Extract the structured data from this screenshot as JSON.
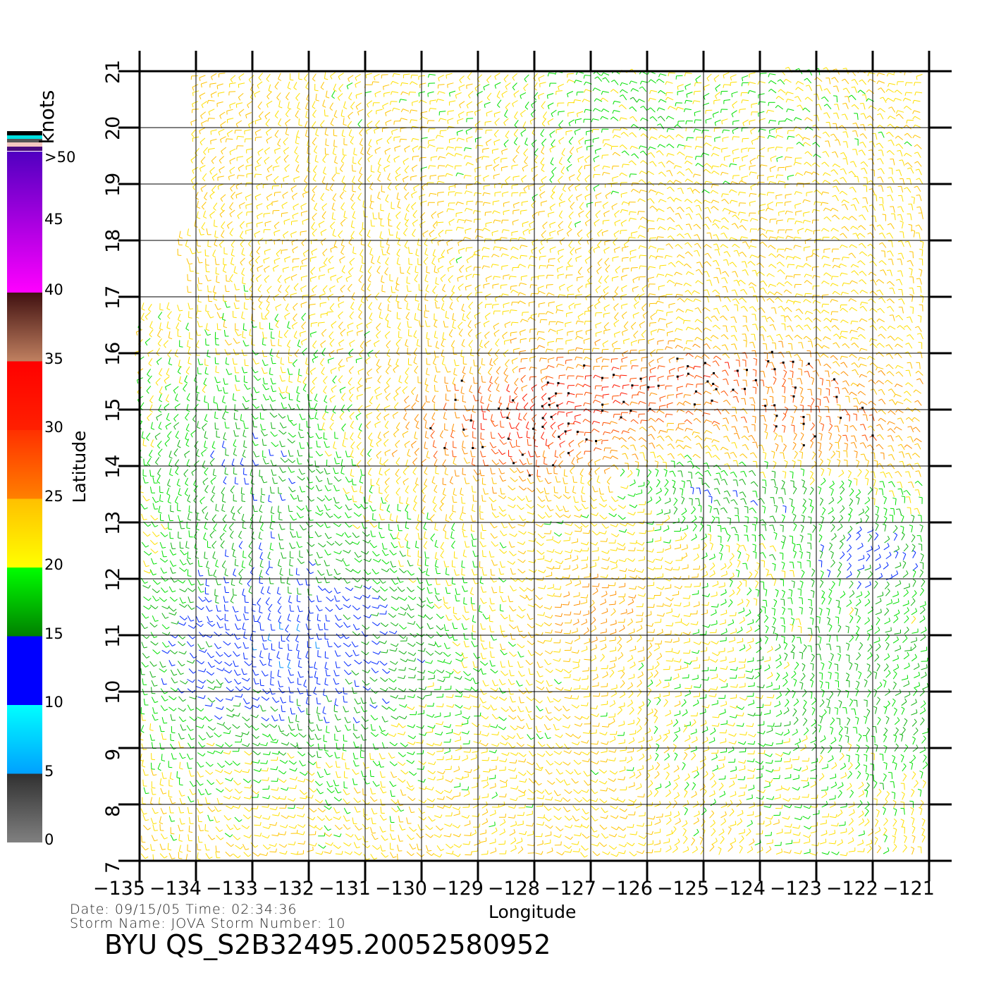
{
  "map": {
    "xlabel": "Longitude",
    "ylabel": "Latitude",
    "lon_range": [
      -135,
      -121
    ],
    "lat_range": [
      7,
      21
    ],
    "lon_ticks": [
      "−135",
      "−134",
      "−133",
      "−132",
      "−131",
      "−130",
      "−129",
      "−128",
      "−127",
      "−126",
      "−125",
      "−124",
      "−123",
      "−122",
      "−121"
    ],
    "lat_ticks": [
      "7",
      "8",
      "9",
      "10",
      "11",
      "12",
      "13",
      "14",
      "15",
      "16",
      "17",
      "18",
      "19",
      "20",
      "21"
    ],
    "grid": true
  },
  "colorbar": {
    "unit": "knots",
    "labels": [
      "0",
      "5",
      "10",
      "15",
      "20",
      "25",
      "30",
      "35",
      "40",
      "45",
      ">50"
    ],
    "stops": [
      {
        "from": 0,
        "to": 5,
        "colors": [
          "#808080",
          "#303030"
        ]
      },
      {
        "from": 5,
        "to": 10,
        "colors": [
          "#00a0ff",
          "#00ffff"
        ]
      },
      {
        "from": 10,
        "to": 15,
        "colors": [
          "#0000ff",
          "#0000ff"
        ]
      },
      {
        "from": 15,
        "to": 20,
        "colors": [
          "#008000",
          "#00ff00"
        ]
      },
      {
        "from": 20,
        "to": 25,
        "colors": [
          "#ffff00",
          "#ffc000"
        ]
      },
      {
        "from": 25,
        "to": 30,
        "colors": [
          "#ff8000",
          "#ff3000"
        ]
      },
      {
        "from": 30,
        "to": 35,
        "colors": [
          "#ff2000",
          "#ff0000"
        ]
      },
      {
        "from": 35,
        "to": 40,
        "colors": [
          "#c08060",
          "#401010"
        ]
      },
      {
        "from": 40,
        "to": 50,
        "colors": [
          "#ff00ff",
          "#5000c0"
        ]
      }
    ]
  },
  "info": {
    "date_line": "Date:  09/15/05    Time:  02:34:36",
    "storm_line": "Storm  Name:  JOVA    Storm  Number:  10",
    "title": "BYU  QS_S2B32495.20052580952"
  }
}
